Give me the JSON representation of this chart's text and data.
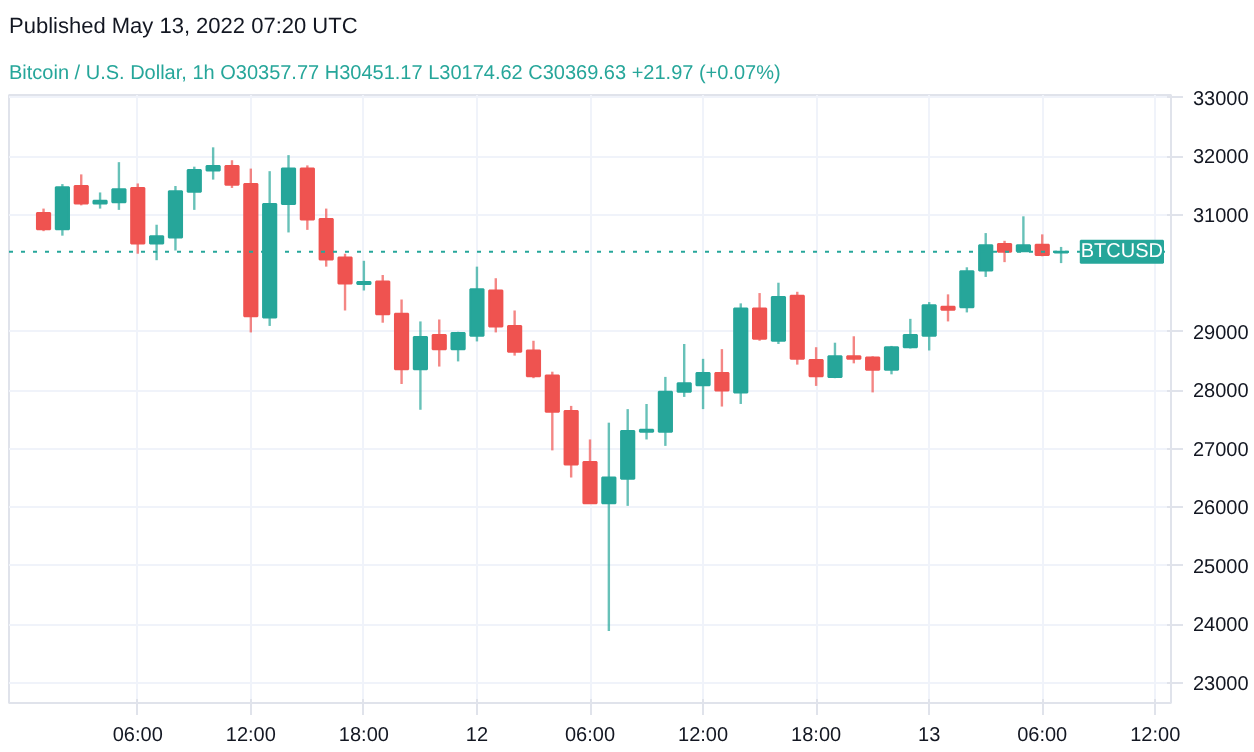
{
  "chart_data": {
    "type": "candlestick",
    "title": "Published May 13, 2022 07:20 UTC",
    "subtitle": "Bitcoin / U.S. Dollar, 1h  O30357.77  H30451.17  L30174.62  C30369.63  +21.97 (+0.07%)",
    "x": [
      "2022-05-11T01:00",
      "2022-05-11T02:00",
      "2022-05-11T03:00",
      "2022-05-11T04:00",
      "2022-05-11T05:00",
      "2022-05-11T06:00",
      "2022-05-11T07:00",
      "2022-05-11T08:00",
      "2022-05-11T09:00",
      "2022-05-11T10:00",
      "2022-05-11T11:00",
      "2022-05-11T12:00",
      "2022-05-11T13:00",
      "2022-05-11T14:00",
      "2022-05-11T15:00",
      "2022-05-11T16:00",
      "2022-05-11T17:00",
      "2022-05-11T18:00",
      "2022-05-11T19:00",
      "2022-05-11T20:00",
      "2022-05-11T21:00",
      "2022-05-11T22:00",
      "2022-05-11T23:00",
      "2022-05-12T00:00",
      "2022-05-12T01:00",
      "2022-05-12T02:00",
      "2022-05-12T03:00",
      "2022-05-12T04:00",
      "2022-05-12T05:00",
      "2022-05-12T06:00",
      "2022-05-12T07:00",
      "2022-05-12T08:00",
      "2022-05-12T09:00",
      "2022-05-12T10:00",
      "2022-05-12T11:00",
      "2022-05-12T12:00",
      "2022-05-12T13:00",
      "2022-05-12T14:00",
      "2022-05-12T15:00",
      "2022-05-12T16:00",
      "2022-05-12T17:00",
      "2022-05-12T18:00",
      "2022-05-12T19:00",
      "2022-05-12T20:00",
      "2022-05-12T21:00",
      "2022-05-12T22:00",
      "2022-05-12T23:00",
      "2022-05-13T00:00",
      "2022-05-13T01:00",
      "2022-05-13T02:00",
      "2022-05-13T03:00",
      "2022-05-13T04:00",
      "2022-05-13T05:00",
      "2022-05-13T06:00",
      "2022-05-13T07:00"
    ],
    "ohlc": [
      [
        31030,
        31107,
        30721,
        30754
      ],
      [
        30754,
        31526,
        30644,
        31471
      ],
      [
        31493,
        31692,
        31162,
        31195
      ],
      [
        31195,
        31383,
        31107,
        31239
      ],
      [
        31217,
        31901,
        31085,
        31438
      ],
      [
        31460,
        31537,
        30335,
        30511
      ],
      [
        30511,
        30831,
        30224,
        30633
      ],
      [
        30611,
        31493,
        30390,
        31405
      ],
      [
        31394,
        31824,
        31085,
        31769
      ],
      [
        31758,
        32155,
        31603,
        31835
      ],
      [
        31835,
        31934,
        31460,
        31515
      ],
      [
        31526,
        31791,
        28989,
        29265
      ],
      [
        29243,
        31747,
        29100,
        31184
      ],
      [
        31184,
        32022,
        30699,
        31791
      ],
      [
        31791,
        31846,
        30743,
        30920
      ],
      [
        30931,
        31107,
        30114,
        30236
      ],
      [
        30269,
        30335,
        29364,
        29827
      ],
      [
        29816,
        30214,
        29706,
        29850
      ],
      [
        29861,
        29971,
        29155,
        29298
      ],
      [
        29309,
        29552,
        28107,
        28360
      ],
      [
        28360,
        29177,
        27666,
        28912
      ],
      [
        28945,
        29210,
        28405,
        28703
      ],
      [
        28703,
        29000,
        28493,
        28978
      ],
      [
        28934,
        30114,
        28835,
        29728
      ],
      [
        29706,
        29916,
        28989,
        29089
      ],
      [
        29100,
        29364,
        28592,
        28658
      ],
      [
        28680,
        28846,
        28206,
        28239
      ],
      [
        28250,
        28317,
        26971,
        27633
      ],
      [
        27644,
        27732,
        26507,
        26728
      ],
      [
        26772,
        27158,
        26066,
        26066
      ],
      [
        26066,
        27445,
        23882,
        26507
      ],
      [
        26485,
        27677,
        26022,
        27302
      ],
      [
        27291,
        27765,
        27158,
        27324
      ],
      [
        27291,
        28228,
        27048,
        27974
      ],
      [
        27974,
        28791,
        27886,
        28118
      ],
      [
        28085,
        28537,
        27677,
        28294
      ],
      [
        28294,
        28703,
        27721,
        27996
      ],
      [
        27963,
        29486,
        27765,
        29397
      ],
      [
        29397,
        29662,
        28846,
        28879
      ],
      [
        28846,
        29839,
        28791,
        29596
      ],
      [
        29618,
        29684,
        28438,
        28537
      ],
      [
        28515,
        28736,
        28074,
        28239
      ],
      [
        28228,
        28813,
        28206,
        28581
      ],
      [
        28581,
        28923,
        28460,
        28537
      ],
      [
        28559,
        28581,
        27963,
        28349
      ],
      [
        28349,
        28758,
        28272,
        28736
      ],
      [
        28736,
        29221,
        28714,
        28945
      ],
      [
        28934,
        29508,
        28680,
        29452
      ],
      [
        29430,
        29640,
        29177,
        29375
      ],
      [
        29419,
        30103,
        29331,
        30037
      ],
      [
        30048,
        30688,
        29938,
        30478
      ],
      [
        30500,
        30556,
        30191,
        30368
      ],
      [
        30379,
        30975,
        30368,
        30478
      ],
      [
        30489,
        30666,
        30291,
        30313
      ],
      [
        30357.77,
        30451.17,
        30174.62,
        30369.63
      ]
    ],
    "colors": [
      "#ef5350",
      "#26a69a",
      "#ef5350",
      "#26a69a",
      "#26a69a",
      "#ef5350",
      "#26a69a",
      "#26a69a",
      "#26a69a",
      "#26a69a",
      "#ef5350",
      "#ef5350",
      "#26a69a",
      "#26a69a",
      "#ef5350",
      "#ef5350",
      "#ef5350",
      "#26a69a",
      "#ef5350",
      "#ef5350",
      "#26a69a",
      "#ef5350",
      "#26a69a",
      "#26a69a",
      "#ef5350",
      "#ef5350",
      "#ef5350",
      "#ef5350",
      "#ef5350",
      "#ef5350",
      "#26a69a",
      "#26a69a",
      "#26a69a",
      "#26a69a",
      "#26a69a",
      "#26a69a",
      "#ef5350",
      "#26a69a",
      "#ef5350",
      "#26a69a",
      "#ef5350",
      "#ef5350",
      "#26a69a",
      "#ef5350",
      "#ef5350",
      "#26a69a",
      "#26a69a",
      "#26a69a",
      "#ef5350",
      "#26a69a",
      "#26a69a",
      "#ef5350",
      "#26a69a",
      "#ef5350",
      "#26a69a"
    ],
    "xlim": [
      "2022-05-10T23:10",
      "2022-05-13T12:50"
    ],
    "xticks": [
      {
        "value": "2022-05-11T06:00",
        "label": "06:00"
      },
      {
        "value": "2022-05-11T12:00",
        "label": "12:00"
      },
      {
        "value": "2022-05-11T18:00",
        "label": "18:00"
      },
      {
        "value": "2022-05-12T00:00",
        "label": "12"
      },
      {
        "value": "2022-05-12T06:00",
        "label": "06:00"
      },
      {
        "value": "2022-05-12T12:00",
        "label": "12:00"
      },
      {
        "value": "2022-05-12T18:00",
        "label": "18:00"
      },
      {
        "value": "2022-05-13T00:00",
        "label": "13"
      },
      {
        "value": "2022-05-13T06:00",
        "label": "06:00"
      },
      {
        "value": "2022-05-13T12:00",
        "label": "12:00"
      }
    ],
    "ylim": [
      22650,
      33050
    ],
    "yticks": [
      23000,
      24000,
      25000,
      26000,
      27000,
      28000,
      29000,
      31000,
      32000,
      33000
    ],
    "ref_lines": [
      {
        "axis": "y",
        "value": 30369.63,
        "label": "BTCUSD",
        "color": "#26a69a",
        "line_style": "dotted"
      }
    ],
    "grid": true
  }
}
